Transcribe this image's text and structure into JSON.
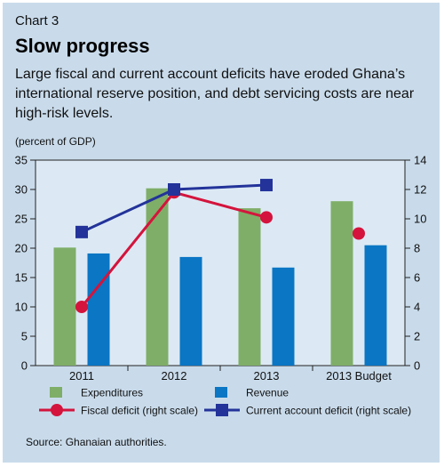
{
  "header": {
    "chart_number": "Chart 3",
    "title": "Slow progress",
    "subtitle": "Large fiscal and current account deficits have eroded Ghana’s international reserve position, and debt servicing costs are near high-risk levels.",
    "unit": "(percent of GDP)"
  },
  "source": "Source: Ghanaian authorities.",
  "colors": {
    "panel_bg": "#c9dbeb",
    "plot_bg": "#dce9f4",
    "expenditures": "#7fae68",
    "revenue": "#0a76c4",
    "fiscal": "#d4143c",
    "current_account": "#23339a"
  },
  "chart_data": {
    "type": "bar",
    "title": "Slow progress",
    "categories": [
      "2011",
      "2012",
      "2013",
      "2013 Budget"
    ],
    "left_axis": {
      "ylim": [
        0,
        35
      ],
      "ticks": [
        0,
        5,
        10,
        15,
        20,
        25,
        30,
        35
      ]
    },
    "right_axis": {
      "ylim": [
        0,
        14
      ],
      "ticks": [
        0,
        2,
        4,
        6,
        8,
        10,
        12,
        14
      ]
    },
    "grid": false,
    "legend": "bottom",
    "bar_series": [
      {
        "name": "Expenditures",
        "axis": "left",
        "values": [
          20.1,
          30.2,
          26.8,
          28.0
        ]
      },
      {
        "name": "Revenue",
        "axis": "left",
        "values": [
          19.1,
          18.5,
          16.7,
          20.5
        ]
      }
    ],
    "line_series": [
      {
        "name": "Fiscal deficit (right scale)",
        "axis": "right",
        "marker": "circle",
        "values": [
          4.0,
          11.8,
          10.1,
          9.0
        ],
        "connected_points": 3
      },
      {
        "name": "Current account deficit (right scale)",
        "axis": "right",
        "marker": "square",
        "values": [
          9.1,
          12.0,
          12.3,
          null
        ],
        "connected_points": 3
      }
    ]
  }
}
